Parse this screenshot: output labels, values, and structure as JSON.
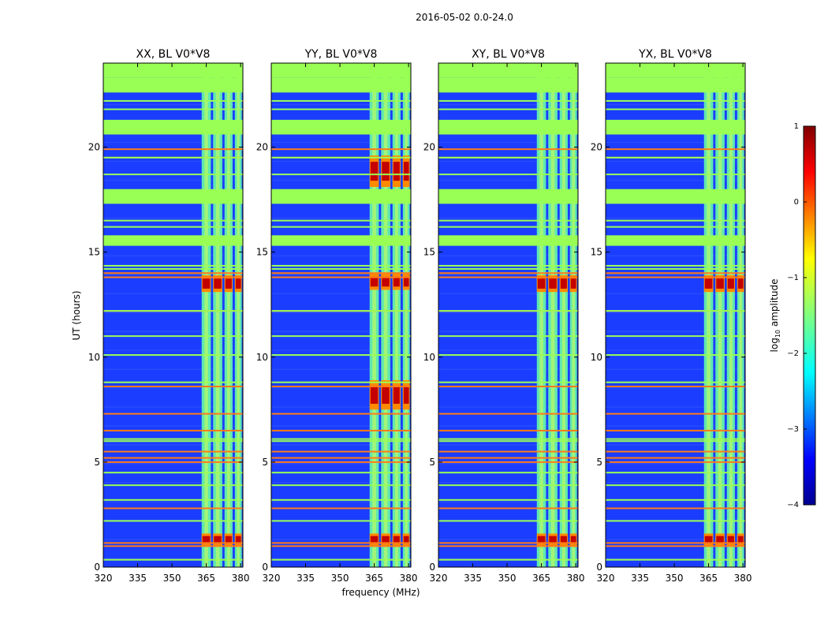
{
  "figure": {
    "suptitle": "2016-05-02 0.0-24.0"
  },
  "chart_data": {
    "type": "heatmap",
    "panels": [
      {
        "title": "XX, BL V0*V8",
        "pol": "XX"
      },
      {
        "title": "YY, BL V0*V8",
        "pol": "YY"
      },
      {
        "title": "XY, BL V0*V8",
        "pol": "XY"
      },
      {
        "title": "YX, BL V0*V8",
        "pol": "YX"
      }
    ],
    "xlabel": "frequency (MHz)",
    "ylabel": "UT (hours)",
    "xlim": [
      320,
      381
    ],
    "ylim": [
      0,
      24
    ],
    "xticks": [
      320,
      335,
      350,
      365,
      380
    ],
    "yticks": [
      0,
      5,
      10,
      15,
      20
    ],
    "colorbar": {
      "label": "log",
      "label_sub": "10",
      "label_rest": " amplitude",
      "range": [
        -4,
        1
      ],
      "ticks": [
        1,
        0,
        -1,
        -2,
        -3,
        -4
      ],
      "tick_labels": [
        "1",
        "0",
        "−1",
        "−2",
        "−3",
        "−4"
      ],
      "colormap": "jet"
    },
    "flagged_color": "#99ff55",
    "flagged_time_ranges_hours": [
      [
        22.6,
        23.3
      ],
      [
        20.6,
        21.3
      ],
      [
        17.3,
        18.0
      ],
      [
        15.3,
        15.8
      ]
    ],
    "thin_flagged_lines_hours": [
      0.35,
      2.2,
      3.2,
      3.9,
      4.5,
      6.0,
      6.1,
      8.8,
      10.1,
      11.0,
      12.2,
      14.2,
      14.35,
      16.2,
      16.5,
      18.7,
      19.5,
      21.8,
      22.2
    ],
    "rfi_lines_hours": [
      1.0,
      1.15,
      2.8,
      5.0,
      5.2,
      5.5,
      6.5,
      7.3,
      8.6,
      12.2,
      13.8,
      14.0,
      19.5,
      19.9
    ],
    "signal_channels_mhz": [
      [
        363.0,
        367.0
      ],
      [
        368.0,
        372.0
      ],
      [
        373.0,
        376.5
      ],
      [
        377.5,
        380.5
      ]
    ],
    "bright_events": [
      {
        "pol": "XX",
        "t0": 13.1,
        "t1": 13.9
      },
      {
        "pol": "XX",
        "t0": 1.0,
        "t1": 1.6
      },
      {
        "pol": "YY",
        "t0": 13.2,
        "t1": 14.0
      },
      {
        "pol": "YY",
        "t0": 7.5,
        "t1": 8.9
      },
      {
        "pol": "YY",
        "t0": 18.1,
        "t1": 19.6
      },
      {
        "pol": "YY",
        "t0": 1.0,
        "t1": 1.6
      },
      {
        "pol": "XY",
        "t0": 13.1,
        "t1": 13.9
      },
      {
        "pol": "XY",
        "t0": 1.0,
        "t1": 1.6
      },
      {
        "pol": "YX",
        "t0": 13.1,
        "t1": 13.9
      },
      {
        "pol": "YX",
        "t0": 1.0,
        "t1": 1.6
      }
    ]
  }
}
